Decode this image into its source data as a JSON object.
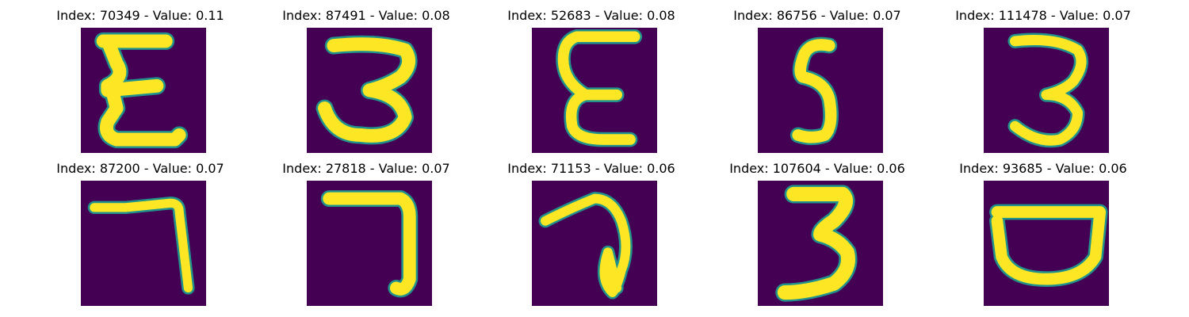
{
  "colors": {
    "background": "#440154",
    "stroke": "#fde725",
    "edge": "#21918c"
  },
  "panels": [
    {
      "title": "Index: 70349 - Value: 0.11",
      "glyph": "epsilon"
    },
    {
      "title": "Index: 87491 - Value: 0.08",
      "glyph": "three-wide"
    },
    {
      "title": "Index: 52683 - Value: 0.08",
      "glyph": "epsilon-open"
    },
    {
      "title": "Index: 86756 - Value: 0.07",
      "glyph": "five"
    },
    {
      "title": "Index: 111478 - Value: 0.07",
      "glyph": "three-thin"
    },
    {
      "title": "Index: 87200 - Value: 0.07",
      "glyph": "seven-thin"
    },
    {
      "title": "Index: 27818 - Value: 0.07",
      "glyph": "seven-thick"
    },
    {
      "title": "Index: 71153 - Value: 0.06",
      "glyph": "seven-loop"
    },
    {
      "title": "Index: 107604 - Value: 0.06",
      "glyph": "three-tall"
    },
    {
      "title": "Index: 93685 - Value: 0.06",
      "glyph": "bowl"
    }
  ]
}
